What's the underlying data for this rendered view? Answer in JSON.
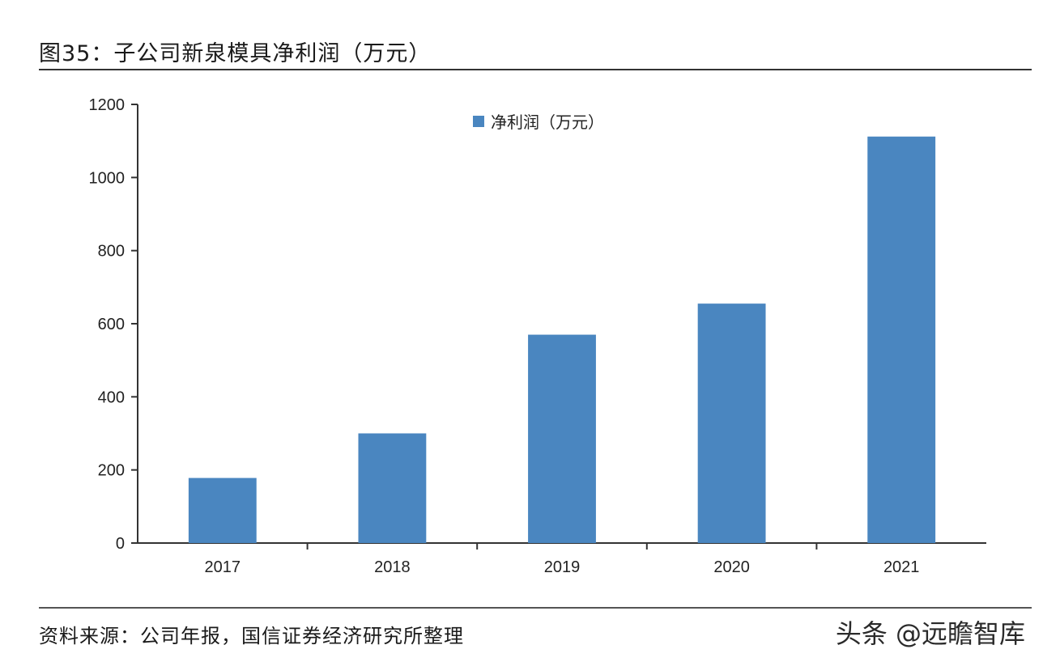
{
  "figure": {
    "title": "图35：子公司新泉模具净利润（万元）",
    "source": "资料来源：公司年报，国信证券经济研究所整理",
    "watermark": "头条 @远瞻智库"
  },
  "chart_data": {
    "type": "bar",
    "categories": [
      "2017",
      "2018",
      "2019",
      "2020",
      "2021"
    ],
    "series": [
      {
        "name": "净利润（万元）",
        "values": [
          178,
          300,
          570,
          655,
          1112
        ],
        "color": "#4a86c0"
      }
    ],
    "ylim": [
      0,
      1200
    ],
    "yticks": [
      "0",
      "200",
      "400",
      "600",
      "800",
      "1000",
      "1200"
    ],
    "grid": false,
    "legend_position": "top-center"
  }
}
